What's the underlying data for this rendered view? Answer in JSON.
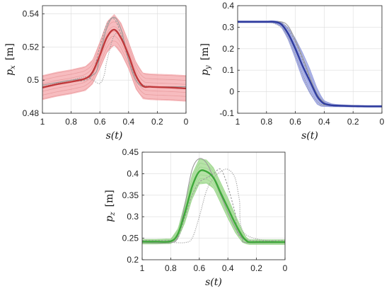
{
  "chart_data": [
    {
      "id": "px",
      "type": "line",
      "xlabel": "s(t)",
      "ylabel": "p_x [m]",
      "xlim": [
        1,
        0
      ],
      "ylim": [
        0.48,
        0.545
      ],
      "xticks": [
        1,
        0.8,
        0.6,
        0.4,
        0.2,
        0
      ],
      "xticklabels": [
        "1",
        "0.8",
        "0.6",
        "0.4",
        "0.2",
        "0"
      ],
      "yticks": [
        0.48,
        0.5,
        0.52,
        0.54
      ],
      "yticklabels": [
        "0.48",
        "0.5",
        "0.52",
        "0.54"
      ],
      "grid": true,
      "color": "#c0393b",
      "band_color": "#f4a6aa",
      "mean": {
        "x": [
          1,
          0.9,
          0.8,
          0.7,
          0.65,
          0.6,
          0.55,
          0.5,
          0.45,
          0.4,
          0.35,
          0.3,
          0.25,
          0.2,
          0.1,
          0
        ],
        "y": [
          0.4955,
          0.4975,
          0.499,
          0.501,
          0.505,
          0.515,
          0.526,
          0.5305,
          0.525,
          0.515,
          0.503,
          0.4965,
          0.496,
          0.4958,
          0.4955,
          0.495
        ]
      },
      "band_half_width": [
        0.0075,
        0.0075,
        0.0075,
        0.0075,
        0.0075,
        0.0085,
        0.0095,
        0.0095,
        0.0095,
        0.0085,
        0.0085,
        0.008,
        0.008,
        0.008,
        0.008,
        0.008
      ],
      "demos": [
        {
          "x": [
            1,
            0.8,
            0.7,
            0.65,
            0.62,
            0.6,
            0.55,
            0.5,
            0.45,
            0.4,
            0.35,
            0.3,
            0.25,
            0.2,
            0
          ],
          "y": [
            0.497,
            0.5,
            0.501,
            0.503,
            0.506,
            0.515,
            0.532,
            0.538,
            0.53,
            0.512,
            0.5,
            0.496,
            0.496,
            0.496,
            0.496
          ]
        },
        {
          "x": [
            1,
            0.8,
            0.7,
            0.65,
            0.6,
            0.55,
            0.5,
            0.45,
            0.4,
            0.35,
            0.3,
            0.25,
            0
          ],
          "y": [
            0.496,
            0.499,
            0.5,
            0.504,
            0.52,
            0.534,
            0.537,
            0.527,
            0.512,
            0.502,
            0.497,
            0.496,
            0.495
          ]
        },
        {
          "x": [
            1,
            0.8,
            0.7,
            0.65,
            0.6,
            0.57,
            0.55,
            0.5,
            0.45,
            0.4,
            0.35,
            0.3,
            0
          ],
          "y": [
            0.496,
            0.5,
            0.502,
            0.5,
            0.498,
            0.503,
            0.512,
            0.527,
            0.526,
            0.514,
            0.503,
            0.497,
            0.495
          ]
        }
      ]
    },
    {
      "id": "py",
      "type": "line",
      "xlabel": "s(t)",
      "ylabel": "p_y [m]",
      "xlim": [
        1,
        0
      ],
      "ylim": [
        -0.1,
        0.4
      ],
      "xticks": [
        1,
        0.8,
        0.6,
        0.4,
        0.2,
        0
      ],
      "xticklabels": [
        "1",
        "0.8",
        "0.6",
        "0.4",
        "0.2",
        "0"
      ],
      "yticks": [
        -0.1,
        0,
        0.1,
        0.2,
        0.3,
        0.4
      ],
      "yticklabels": [
        "-0.1",
        "0",
        "0.1",
        "0.2",
        "0.3",
        "0.4"
      ],
      "grid": true,
      "color": "#2f3c9e",
      "band_color": "#9aa3e6",
      "mean": {
        "x": [
          1,
          0.9,
          0.8,
          0.75,
          0.7,
          0.65,
          0.6,
          0.55,
          0.5,
          0.45,
          0.42,
          0.4,
          0.35,
          0.3,
          0.2,
          0.1,
          0
        ],
        "y": [
          0.325,
          0.325,
          0.325,
          0.325,
          0.315,
          0.27,
          0.2,
          0.12,
          0.05,
          -0.02,
          -0.045,
          -0.055,
          -0.063,
          -0.065,
          -0.067,
          -0.068,
          -0.068
        ]
      },
      "band_half_width": [
        0.005,
        0.005,
        0.005,
        0.006,
        0.012,
        0.03,
        0.05,
        0.065,
        0.06,
        0.04,
        0.025,
        0.015,
        0.008,
        0.006,
        0.005,
        0.005,
        0.005
      ],
      "demos": [
        {
          "x": [
            1,
            0.8,
            0.7,
            0.65,
            0.6,
            0.55,
            0.5,
            0.45,
            0.4,
            0.35,
            0
          ],
          "y": [
            0.325,
            0.325,
            0.325,
            0.305,
            0.24,
            0.16,
            0.07,
            -0.01,
            -0.05,
            -0.062,
            -0.068
          ]
        },
        {
          "x": [
            1,
            0.8,
            0.75,
            0.7,
            0.65,
            0.6,
            0.55,
            0.5,
            0.45,
            0.4,
            0.38,
            0
          ],
          "y": [
            0.325,
            0.325,
            0.325,
            0.32,
            0.29,
            0.23,
            0.15,
            0.06,
            -0.02,
            -0.055,
            -0.062,
            -0.068
          ]
        },
        {
          "x": [
            1,
            0.8,
            0.7,
            0.65,
            0.6,
            0.55,
            0.5,
            0.45,
            0.42,
            0.4,
            0
          ],
          "y": [
            0.325,
            0.325,
            0.3,
            0.25,
            0.17,
            0.08,
            0.0,
            -0.045,
            -0.058,
            -0.063,
            -0.068
          ]
        }
      ]
    },
    {
      "id": "pz",
      "type": "line",
      "xlabel": "s(t)",
      "ylabel": "p_z [m]",
      "xlim": [
        1,
        0
      ],
      "ylim": [
        0.2,
        0.45
      ],
      "xticks": [
        1,
        0.8,
        0.6,
        0.4,
        0.2,
        0
      ],
      "xticklabels": [
        "1",
        "0.8",
        "0.6",
        "0.4",
        "0.2",
        "0"
      ],
      "yticks": [
        0.2,
        0.25,
        0.3,
        0.35,
        0.4,
        0.45
      ],
      "yticklabels": [
        "0.2",
        "0.25",
        "0.3",
        "0.35",
        "0.4",
        "0.45"
      ],
      "grid": true,
      "color": "#3ea83a",
      "band_color": "#9fd98b",
      "mean": {
        "x": [
          1,
          0.9,
          0.8,
          0.75,
          0.7,
          0.65,
          0.6,
          0.55,
          0.5,
          0.45,
          0.4,
          0.35,
          0.3,
          0.27,
          0.25,
          0.2,
          0.1,
          0
        ],
        "y": [
          0.242,
          0.242,
          0.243,
          0.26,
          0.31,
          0.37,
          0.405,
          0.405,
          0.39,
          0.355,
          0.32,
          0.285,
          0.255,
          0.244,
          0.241,
          0.241,
          0.241,
          0.241
        ]
      },
      "band_half_width": [
        0.006,
        0.006,
        0.006,
        0.012,
        0.025,
        0.03,
        0.03,
        0.028,
        0.025,
        0.025,
        0.025,
        0.022,
        0.015,
        0.008,
        0.006,
        0.006,
        0.006,
        0.006
      ],
      "demos": [
        {
          "x": [
            1,
            0.8,
            0.75,
            0.7,
            0.65,
            0.6,
            0.55,
            0.5,
            0.45,
            0.4,
            0.35,
            0.3,
            0.27,
            0
          ],
          "y": [
            0.24,
            0.24,
            0.255,
            0.33,
            0.41,
            0.435,
            0.425,
            0.39,
            0.35,
            0.31,
            0.275,
            0.25,
            0.24,
            0.24
          ]
        },
        {
          "x": [
            1,
            0.8,
            0.75,
            0.7,
            0.65,
            0.6,
            0.55,
            0.5,
            0.45,
            0.4,
            0.35,
            0.3,
            0
          ],
          "y": [
            0.245,
            0.245,
            0.25,
            0.3,
            0.35,
            0.38,
            0.39,
            0.4,
            0.41,
            0.37,
            0.31,
            0.25,
            0.245
          ]
        },
        {
          "x": [
            1,
            0.8,
            0.7,
            0.65,
            0.6,
            0.55,
            0.5,
            0.45,
            0.4,
            0.35,
            0.32,
            0.28,
            0
          ],
          "y": [
            0.24,
            0.24,
            0.24,
            0.25,
            0.3,
            0.36,
            0.39,
            0.405,
            0.41,
            0.39,
            0.34,
            0.26,
            0.24
          ]
        }
      ]
    }
  ]
}
